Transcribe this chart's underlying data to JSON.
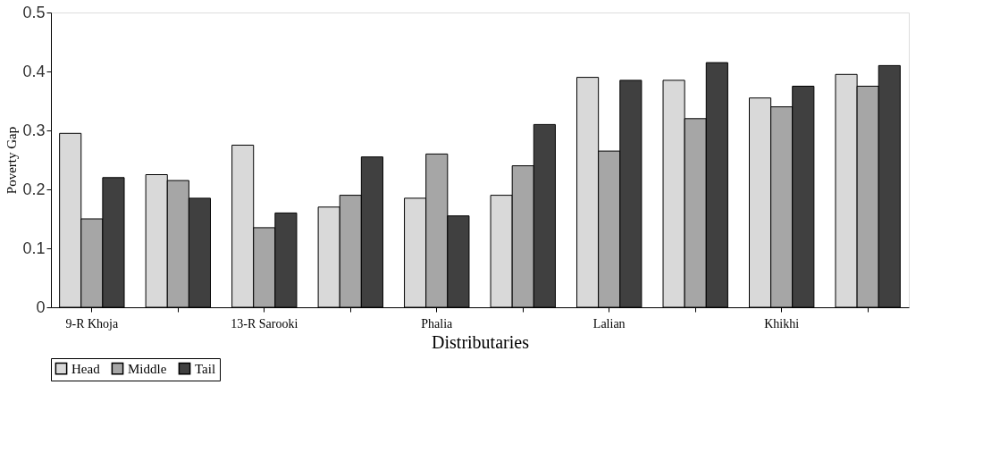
{
  "chart_data": {
    "type": "bar",
    "xlabel": "Distributaries",
    "ylabel": "Poverty Gap",
    "categories": [
      "9-R Khoja",
      null,
      "13-R Sarooki",
      null,
      "Phalia",
      null,
      "Lalian",
      null,
      "Khikhi",
      null
    ],
    "series": [
      {
        "name": "Head",
        "color": "#d9d9d9",
        "values": [
          0.295,
          0.225,
          0.275,
          0.17,
          0.185,
          0.19,
          0.39,
          0.385,
          0.355,
          0.395
        ]
      },
      {
        "name": "Middle",
        "color": "#a6a6a6",
        "values": [
          0.15,
          0.215,
          0.135,
          0.19,
          0.26,
          0.24,
          0.265,
          0.32,
          0.34,
          0.375
        ]
      },
      {
        "name": "Tail",
        "color": "#404040",
        "values": [
          0.22,
          0.185,
          0.16,
          0.255,
          0.155,
          0.31,
          0.385,
          0.415,
          0.375,
          0.41
        ]
      }
    ],
    "ylim": [
      0,
      0.5
    ],
    "yticks": [
      0,
      0.1,
      0.2,
      0.3,
      0.4,
      0.5
    ],
    "grid": false,
    "legend": "bottom"
  }
}
